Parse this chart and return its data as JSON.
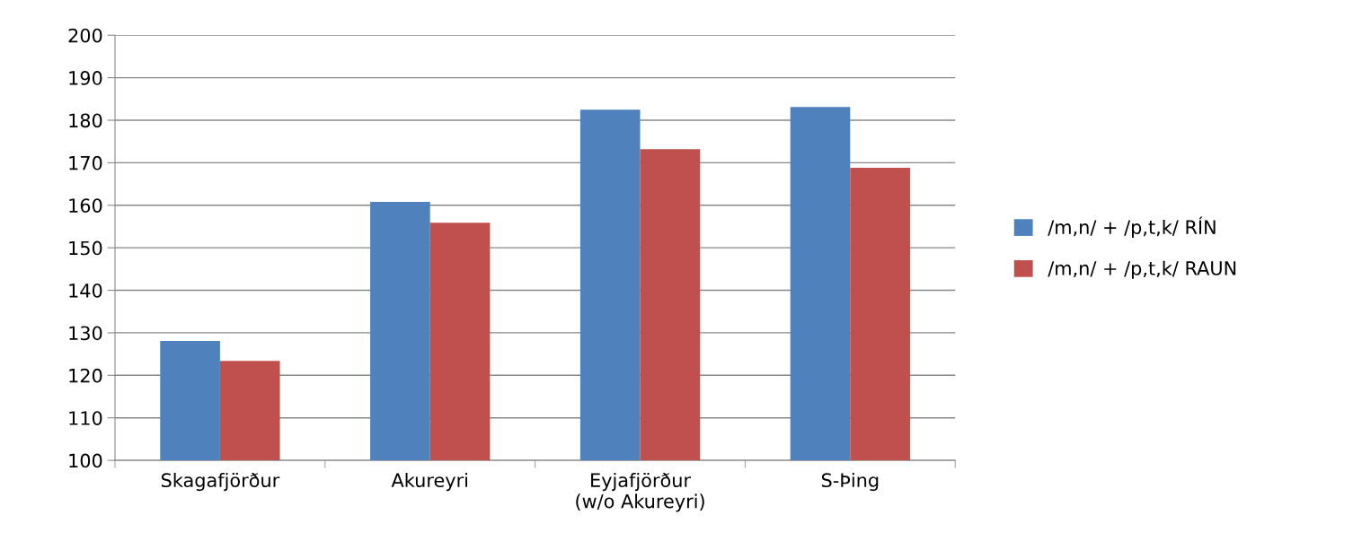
{
  "chart_data": {
    "type": "bar",
    "categories": [
      "Skagafjörður",
      "Akureyri",
      "Eyjafjörður\n(w/o Akureyri)",
      "S-Þing"
    ],
    "series": [
      {
        "name": "/m,n/ + /p,t,k/ RÍN",
        "color": "#4f81bd",
        "values": [
          128.1,
          160.8,
          182.5,
          183.1
        ]
      },
      {
        "name": "/m,n/ + /p,t,k/ RAUN",
        "color": "#c0504d",
        "values": [
          123.4,
          155.9,
          173.2,
          168.8
        ]
      }
    ],
    "ylim": [
      100,
      200
    ],
    "yticks": [
      100,
      110,
      120,
      130,
      140,
      150,
      160,
      170,
      180,
      190,
      200
    ],
    "grid": "y",
    "legend": "right"
  }
}
